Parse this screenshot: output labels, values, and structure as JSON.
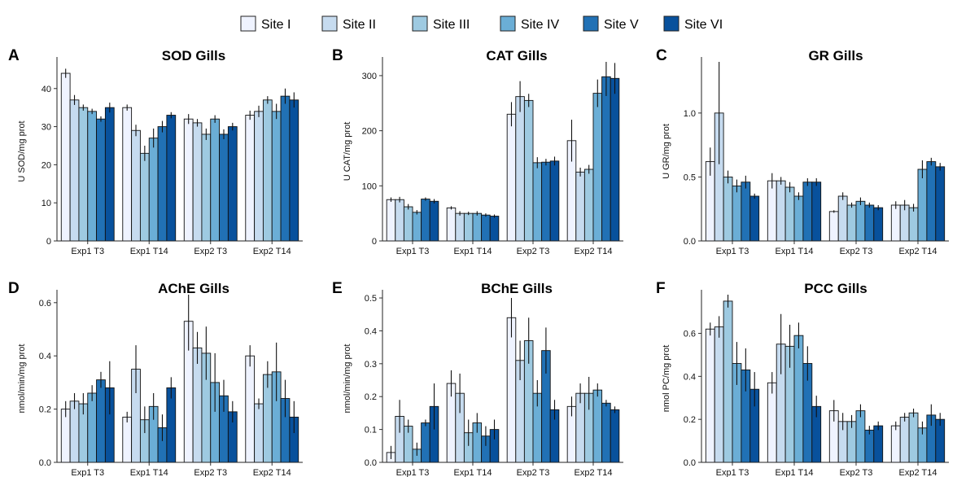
{
  "legend": {
    "sites": [
      "Site I",
      "Site II",
      "Site III",
      "Site IV",
      "Site V",
      "Site VI"
    ],
    "colors": [
      "#eff3ff",
      "#c6dbef",
      "#9ecae1",
      "#6baed6",
      "#2171b5",
      "#08519c"
    ]
  },
  "chart_data": [
    {
      "letter": "A",
      "title": "SOD Gills",
      "type": "bar",
      "ylabel": "U SOD/mg prot",
      "ylim": [
        0,
        47
      ],
      "yticks": [
        0,
        10,
        20,
        30,
        40
      ],
      "categories": [
        "Exp1 T3",
        "Exp1 T14",
        "Exp2 T3",
        "Exp2 T14"
      ],
      "series": [
        {
          "name": "Site I",
          "values": [
            44,
            35,
            32,
            33
          ],
          "errors": [
            1.2,
            0.8,
            1.3,
            1.2
          ]
        },
        {
          "name": "Site II",
          "values": [
            37,
            29,
            31,
            34
          ],
          "errors": [
            1.3,
            1.5,
            1.0,
            1.5
          ]
        },
        {
          "name": "Site III",
          "values": [
            35,
            23,
            28,
            37
          ],
          "errors": [
            0.8,
            2.0,
            1.5,
            1.0
          ]
        },
        {
          "name": "Site IV",
          "values": [
            34,
            27,
            32,
            34
          ],
          "errors": [
            0.7,
            2.5,
            1.0,
            2.0
          ]
        },
        {
          "name": "Site V",
          "values": [
            32,
            30,
            28,
            38
          ],
          "errors": [
            0.7,
            1.5,
            1.3,
            2.0
          ]
        },
        {
          "name": "Site VI",
          "values": [
            35,
            33,
            30,
            37
          ],
          "errors": [
            1.3,
            0.8,
            1.0,
            2.0
          ]
        }
      ]
    },
    {
      "letter": "B",
      "title": "CAT Gills",
      "type": "bar",
      "ylabel": "U CAT/mg prot",
      "ylim": [
        0,
        325
      ],
      "yticks": [
        0,
        100,
        200,
        300
      ],
      "categories": [
        "Exp1 T3",
        "Exp1 T14",
        "Exp2 T3",
        "Exp2 T14"
      ],
      "series": [
        {
          "name": "Site I",
          "values": [
            75,
            60,
            230,
            182
          ],
          "errors": [
            4,
            3,
            22,
            38
          ]
        },
        {
          "name": "Site II",
          "values": [
            75,
            50,
            262,
            125
          ],
          "errors": [
            5,
            4,
            28,
            8
          ]
        },
        {
          "name": "Site III",
          "values": [
            62,
            50,
            255,
            130
          ],
          "errors": [
            5,
            3,
            12,
            8
          ]
        },
        {
          "name": "Site IV",
          "values": [
            52,
            50,
            142,
            268
          ],
          "errors": [
            4,
            4,
            10,
            25
          ]
        },
        {
          "name": "Site V",
          "values": [
            76,
            47,
            143,
            298
          ],
          "errors": [
            3,
            3,
            6,
            35
          ]
        },
        {
          "name": "Site VI",
          "values": [
            72,
            45,
            145,
            295
          ],
          "errors": [
            4,
            3,
            8,
            28
          ]
        }
      ]
    },
    {
      "letter": "C",
      "title": "GR Gills",
      "type": "bar",
      "ylabel": "U GR/mg prot",
      "ylim": [
        0,
        1.4
      ],
      "yticks": [
        0.0,
        0.5,
        1.0
      ],
      "tick_decimals": 1,
      "categories": [
        "Exp1 T3",
        "Exp1 T14",
        "Exp2 T3",
        "Exp2 T14"
      ],
      "series": [
        {
          "name": "Site I",
          "values": [
            0.62,
            0.47,
            0.23,
            0.28
          ],
          "errors": [
            0.11,
            0.06,
            0.01,
            0.03
          ]
        },
        {
          "name": "Site II",
          "values": [
            1.0,
            0.47,
            0.35,
            0.28
          ],
          "errors": [
            0.4,
            0.03,
            0.03,
            0.04
          ]
        },
        {
          "name": "Site III",
          "values": [
            0.5,
            0.42,
            0.28,
            0.26
          ],
          "errors": [
            0.05,
            0.04,
            0.02,
            0.03
          ]
        },
        {
          "name": "Site IV",
          "values": [
            0.43,
            0.35,
            0.31,
            0.56
          ],
          "errors": [
            0.05,
            0.03,
            0.03,
            0.07
          ]
        },
        {
          "name": "Site V",
          "values": [
            0.46,
            0.46,
            0.28,
            0.62
          ],
          "errors": [
            0.05,
            0.03,
            0.02,
            0.03
          ]
        },
        {
          "name": "Site VI",
          "values": [
            0.35,
            0.46,
            0.26,
            0.58
          ],
          "errors": [
            0.02,
            0.03,
            0.02,
            0.03
          ]
        }
      ]
    },
    {
      "letter": "D",
      "title": "AChE Gills",
      "type": "bar",
      "ylabel": "nmol/min/mg prot",
      "ylim": [
        0,
        0.63
      ],
      "yticks": [
        0.0,
        0.2,
        0.4,
        0.6
      ],
      "tick_decimals": 1,
      "categories": [
        "Exp1 T3",
        "Exp1 T14",
        "Exp2 T3",
        "Exp2 T14"
      ],
      "series": [
        {
          "name": "Site I",
          "values": [
            0.2,
            0.17,
            0.53,
            0.4
          ],
          "errors": [
            0.03,
            0.02,
            0.11,
            0.04
          ]
        },
        {
          "name": "Site II",
          "values": [
            0.23,
            0.35,
            0.43,
            0.22
          ],
          "errors": [
            0.03,
            0.09,
            0.06,
            0.02
          ]
        },
        {
          "name": "Site III",
          "values": [
            0.22,
            0.16,
            0.41,
            0.33
          ],
          "errors": [
            0.04,
            0.05,
            0.1,
            0.05
          ]
        },
        {
          "name": "Site IV",
          "values": [
            0.26,
            0.21,
            0.3,
            0.34
          ],
          "errors": [
            0.03,
            0.05,
            0.11,
            0.11
          ]
        },
        {
          "name": "Site V",
          "values": [
            0.31,
            0.13,
            0.25,
            0.24
          ],
          "errors": [
            0.03,
            0.05,
            0.06,
            0.07
          ]
        },
        {
          "name": "Site VI",
          "values": [
            0.28,
            0.28,
            0.19,
            0.17
          ],
          "errors": [
            0.1,
            0.04,
            0.04,
            0.06
          ]
        }
      ]
    },
    {
      "letter": "E",
      "title": "BChE Gills",
      "type": "bar",
      "ylabel": "nmol/min/mg prot",
      "ylim": [
        0,
        0.51
      ],
      "yticks": [
        0.0,
        0.1,
        0.2,
        0.3,
        0.4,
        0.5
      ],
      "tick_decimals": 1,
      "categories": [
        "Exp1 T3",
        "Exp1 T14",
        "Exp2 T3",
        "Exp2 T14"
      ],
      "series": [
        {
          "name": "Site I",
          "values": [
            0.03,
            0.24,
            0.44,
            0.17
          ],
          "errors": [
            0.02,
            0.04,
            0.06,
            0.03
          ]
        },
        {
          "name": "Site II",
          "values": [
            0.14,
            0.21,
            0.31,
            0.21
          ],
          "errors": [
            0.05,
            0.06,
            0.06,
            0.03
          ]
        },
        {
          "name": "Site III",
          "values": [
            0.11,
            0.09,
            0.37,
            0.21
          ],
          "errors": [
            0.02,
            0.04,
            0.07,
            0.05
          ]
        },
        {
          "name": "Site IV",
          "values": [
            0.04,
            0.12,
            0.21,
            0.22
          ],
          "errors": [
            0.02,
            0.03,
            0.04,
            0.02
          ]
        },
        {
          "name": "Site V",
          "values": [
            0.12,
            0.08,
            0.34,
            0.18
          ],
          "errors": [
            0.01,
            0.03,
            0.07,
            0.01
          ]
        },
        {
          "name": "Site VI",
          "values": [
            0.17,
            0.1,
            0.16,
            0.16
          ],
          "errors": [
            0.07,
            0.03,
            0.03,
            0.01
          ]
        }
      ]
    },
    {
      "letter": "F",
      "title": "PCC Gills",
      "type": "bar",
      "ylabel": "nmol PC/mg prot",
      "ylim": [
        0,
        0.78
      ],
      "yticks": [
        0.0,
        0.2,
        0.4,
        0.6
      ],
      "tick_decimals": 1,
      "categories": [
        "Exp1 T3",
        "Exp1 T14",
        "Exp2 T3",
        "Exp2 T14"
      ],
      "series": [
        {
          "name": "Site I",
          "values": [
            0.62,
            0.37,
            0.24,
            0.17
          ],
          "errors": [
            0.03,
            0.05,
            0.05,
            0.02
          ]
        },
        {
          "name": "Site II",
          "values": [
            0.63,
            0.55,
            0.19,
            0.21
          ],
          "errors": [
            0.05,
            0.14,
            0.04,
            0.02
          ]
        },
        {
          "name": "Site III",
          "values": [
            0.75,
            0.54,
            0.19,
            0.23
          ],
          "errors": [
            0.03,
            0.1,
            0.03,
            0.02
          ]
        },
        {
          "name": "Site IV",
          "values": [
            0.46,
            0.59,
            0.24,
            0.16
          ],
          "errors": [
            0.1,
            0.06,
            0.03,
            0.03
          ]
        },
        {
          "name": "Site V",
          "values": [
            0.43,
            0.46,
            0.15,
            0.22
          ],
          "errors": [
            0.1,
            0.08,
            0.02,
            0.05
          ]
        },
        {
          "name": "Site VI",
          "values": [
            0.34,
            0.26,
            0.17,
            0.2
          ],
          "errors": [
            0.08,
            0.05,
            0.02,
            0.03
          ]
        }
      ]
    }
  ]
}
